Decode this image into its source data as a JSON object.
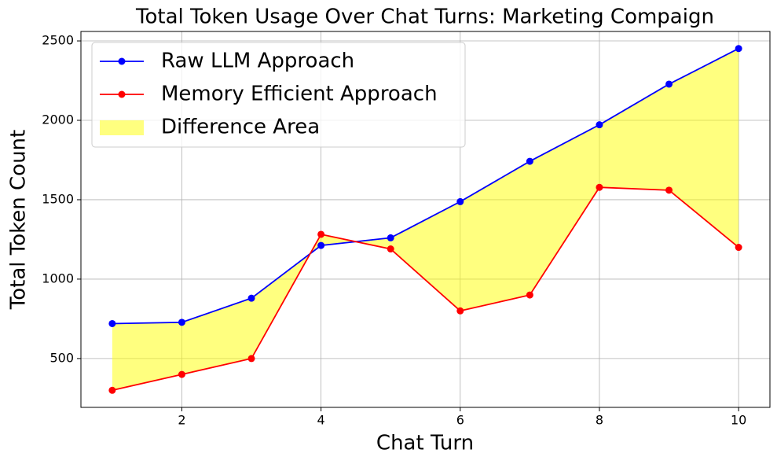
{
  "chart_data": {
    "type": "line",
    "title": "Total Token Usage Over Chat Turns: Marketing Compaign",
    "x_label": "Chat Turn",
    "y_label": "Total Token Count",
    "x": [
      1,
      2,
      3,
      4,
      5,
      6,
      7,
      8,
      9,
      10
    ],
    "series": [
      {
        "name": "Raw LLM Approach",
        "color": "#0000ff",
        "values": [
          720,
          728,
          880,
          1212,
          1260,
          1488,
          1742,
          1972,
          2228,
          2452
        ]
      },
      {
        "name": "Memory Efficient Approach",
        "color": "#ff0000",
        "values": [
          300,
          400,
          500,
          1282,
          1190,
          800,
          900,
          1578,
          1560,
          1200
        ]
      }
    ],
    "fill_between": {
      "name": "Difference Area",
      "color": "#ffff00",
      "alpha": 0.5
    },
    "xlim": [
      0.55,
      10.45
    ],
    "xticks": [
      2,
      4,
      6,
      8,
      10
    ],
    "ylim": [
      192.4,
      2559.6
    ],
    "yticks": [
      500,
      1000,
      1500,
      2000,
      2500
    ],
    "grid": true,
    "legend": "upper left"
  }
}
